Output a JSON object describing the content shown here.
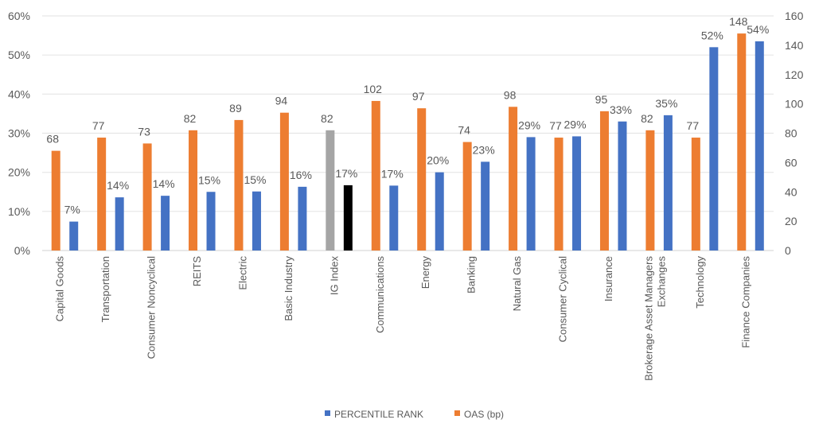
{
  "chart_data": {
    "type": "bar",
    "title": "",
    "categories": [
      "Capital Goods",
      "Transportation",
      "Consumer Noncyclical",
      "REITS",
      "Electric",
      "Basic Industry",
      "IG Index",
      "Communications",
      "Energy",
      "Banking",
      "Natural Gas",
      "Consumer Cyclical",
      "Insurance",
      "Brokerage Asset Managers Exchanges",
      "Technology",
      "Finance Companies"
    ],
    "series": [
      {
        "name": "OAS (bp)",
        "axis": "right",
        "color": "#ED7D31",
        "values": [
          68,
          77,
          73,
          82,
          89,
          94,
          82,
          102,
          97,
          74,
          98,
          77,
          95,
          82,
          77,
          148
        ],
        "labels": [
          "68",
          "77",
          "73",
          "82",
          "89",
          "94",
          "82",
          "102",
          "97",
          "74",
          "98",
          "77",
          "95",
          "82",
          "77",
          "148"
        ]
      },
      {
        "name": "PERCENTILE RANK",
        "axis": "left",
        "color": "#4472C4",
        "values": [
          7.4,
          13.6,
          14,
          15,
          15.1,
          16.3,
          16.7,
          16.6,
          20,
          22.7,
          29,
          29.2,
          33,
          34.6,
          52,
          53.5
        ],
        "labels": [
          "7%",
          "14%",
          "14%",
          "15%",
          "15%",
          "16%",
          "17%",
          "17%",
          "20%",
          "23%",
          "29%",
          "29%",
          "33%",
          "35%",
          "52%",
          "54%"
        ]
      }
    ],
    "highlight": {
      "category": "IG Index",
      "colors": {
        "OAS (bp)": "#A5A5A5",
        "PERCENTILE RANK": "#000000"
      }
    },
    "left_axis": {
      "ticks": [
        "0%",
        "10%",
        "20%",
        "30%",
        "40%",
        "50%",
        "60%"
      ],
      "range": [
        0,
        60
      ]
    },
    "right_axis": {
      "ticks": [
        "0",
        "20",
        "40",
        "60",
        "80",
        "100",
        "120",
        "140",
        "160"
      ],
      "range": [
        0,
        160
      ]
    },
    "legend": {
      "position": "bottom",
      "entries": [
        "PERCENTILE RANK",
        "OAS (bp)"
      ]
    },
    "grid": true
  }
}
